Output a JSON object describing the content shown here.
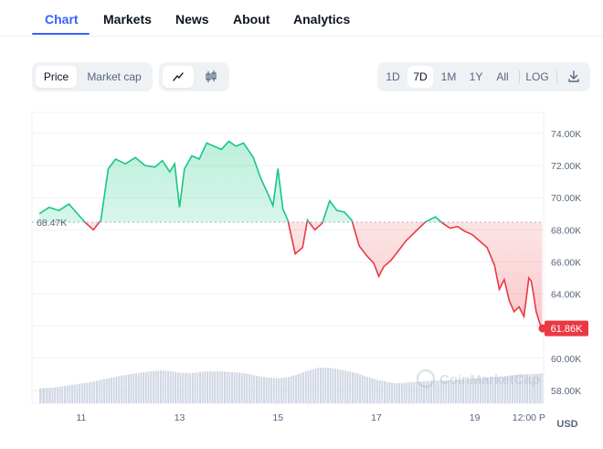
{
  "tabs": [
    {
      "label": "Chart",
      "active": true
    },
    {
      "label": "Markets",
      "active": false
    },
    {
      "label": "News",
      "active": false
    },
    {
      "label": "About",
      "active": false
    },
    {
      "label": "Analytics",
      "active": false
    }
  ],
  "metric_toggle": {
    "options": [
      "Price",
      "Market cap"
    ],
    "selected": "Price"
  },
  "chart_style": {
    "options": [
      "line-chart-icon",
      "candlestick-icon"
    ],
    "selected": "line-chart-icon"
  },
  "timeframes": {
    "options": [
      "1D",
      "7D",
      "1M",
      "1Y",
      "All"
    ],
    "selected": "7D"
  },
  "log_label": "LOG",
  "download_icon": "download-icon",
  "chart_data": {
    "type": "area",
    "reference_value_label": "68.47K",
    "reference_value": 68.47,
    "current_price_label": "61.86K",
    "currency_label": "USD",
    "watermark": "CoinMarketCap",
    "colors": {
      "up": "#16c784",
      "down": "#ea3943",
      "volume": "#cfd6e4",
      "grid": "#eff2f5"
    },
    "y_ticks": [
      "74.00K",
      "72.00K",
      "70.00K",
      "68.00K",
      "66.00K",
      "64.00K",
      "62.00K",
      "60.00K",
      "58.00K"
    ],
    "y_values": [
      74,
      72,
      70,
      68,
      66,
      64,
      62,
      60,
      58
    ],
    "ylim": [
      57.2,
      75.3
    ],
    "x_ticks": [
      "11",
      "13",
      "15",
      "17",
      "19",
      "12:00 P"
    ],
    "x_tick_values": [
      11,
      13,
      15,
      17,
      19,
      20.1
    ],
    "xlim": [
      10.0,
      20.4
    ],
    "series": [
      {
        "x": [
          10.15,
          10.35,
          10.55,
          10.75,
          10.95,
          11.1,
          11.25,
          11.4,
          11.55,
          11.7,
          11.9,
          12.1,
          12.3,
          12.5,
          12.65,
          12.8,
          12.9,
          13.0,
          13.1,
          13.25,
          13.4,
          13.55,
          13.7,
          13.85,
          14.0,
          14.15,
          14.3,
          14.5,
          14.65,
          14.8,
          14.9,
          15.0,
          15.1,
          15.2,
          15.35,
          15.5,
          15.6,
          15.75,
          15.9,
          16.05,
          16.2,
          16.35,
          16.5,
          16.65,
          16.8,
          16.95,
          17.05,
          17.15,
          17.3,
          17.45,
          17.6,
          17.8,
          18.0,
          18.2,
          18.35,
          18.5,
          18.65,
          18.8,
          18.95,
          19.1,
          19.25,
          19.4,
          19.5,
          19.6,
          19.7,
          19.8,
          19.9,
          20.0,
          20.05,
          20.1,
          20.15,
          20.2,
          20.25,
          20.3,
          20.35,
          20.37
        ],
        "y": [
          69.0,
          69.4,
          69.2,
          69.6,
          68.9,
          68.4,
          68.0,
          68.6,
          71.8,
          72.4,
          72.1,
          72.5,
          72.0,
          71.9,
          72.3,
          71.6,
          72.1,
          69.4,
          71.8,
          72.6,
          72.4,
          73.4,
          73.2,
          73.0,
          73.5,
          73.2,
          73.4,
          72.5,
          71.2,
          70.2,
          69.5,
          71.8,
          69.3,
          68.6,
          66.5,
          66.9,
          68.6,
          68.0,
          68.4,
          69.8,
          69.2,
          69.1,
          68.6,
          67.0,
          66.4,
          65.9,
          65.1,
          65.7,
          66.1,
          66.7,
          67.3,
          67.9,
          68.5,
          68.8,
          68.4,
          68.1,
          68.2,
          67.9,
          67.7,
          67.3,
          66.9,
          65.8,
          64.3,
          64.9,
          63.6,
          62.9,
          63.2,
          62.6,
          63.8,
          65.0,
          64.8,
          63.9,
          62.9,
          62.4,
          61.9,
          61.86
        ]
      }
    ],
    "volume": {
      "x": [
        10.15,
        10.4,
        10.6,
        10.8,
        11.0,
        11.2,
        11.4,
        11.6,
        11.8,
        12.0,
        12.2,
        12.4,
        12.6,
        12.8,
        13.0,
        13.2,
        13.4,
        13.6,
        13.8,
        14.0,
        14.2,
        14.4,
        14.6,
        14.8,
        15.0,
        15.2,
        15.4,
        15.6,
        15.8,
        16.0,
        16.2,
        16.4,
        16.6,
        16.8,
        17.0,
        17.2,
        17.4,
        17.6,
        17.8,
        18.0,
        18.2,
        18.4,
        18.6,
        18.8,
        19.0,
        19.2,
        19.4,
        19.6,
        19.8,
        20.0,
        20.2,
        20.37
      ],
      "y": [
        0.42,
        0.44,
        0.48,
        0.52,
        0.56,
        0.6,
        0.66,
        0.72,
        0.78,
        0.82,
        0.86,
        0.9,
        0.92,
        0.9,
        0.86,
        0.84,
        0.88,
        0.9,
        0.9,
        0.88,
        0.86,
        0.82,
        0.76,
        0.72,
        0.7,
        0.74,
        0.82,
        0.92,
        1.0,
        1.0,
        0.96,
        0.9,
        0.84,
        0.74,
        0.66,
        0.6,
        0.56,
        0.58,
        0.6,
        0.62,
        0.64,
        0.64,
        0.66,
        0.68,
        0.7,
        0.72,
        0.74,
        0.76,
        0.8,
        0.82,
        0.82,
        0.84
      ]
    }
  }
}
